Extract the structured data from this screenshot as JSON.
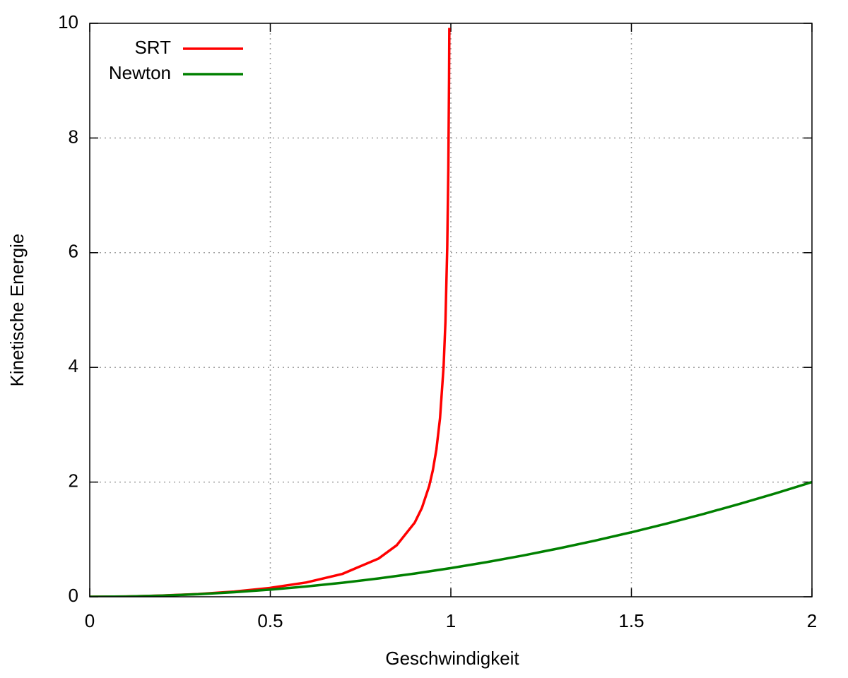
{
  "chart_data": {
    "type": "line",
    "xlabel": "Geschwindigkeit",
    "ylabel": "Kinetische Energie",
    "xlim": [
      0,
      2
    ],
    "ylim": [
      0,
      10
    ],
    "xticks": [
      0,
      0.5,
      1,
      1.5,
      2
    ],
    "yticks": [
      0,
      2,
      4,
      6,
      8,
      10
    ],
    "grid": true,
    "legend": "top-left",
    "series": [
      {
        "name": "SRT",
        "color": "#ff0000",
        "x": [
          0,
          0.1,
          0.2,
          0.3,
          0.4,
          0.5,
          0.6,
          0.7,
          0.8,
          0.85,
          0.9,
          0.92,
          0.94,
          0.95,
          0.96,
          0.97,
          0.98,
          0.985,
          0.99,
          0.993,
          0.995,
          0.9958
        ],
        "values": [
          0,
          0.005,
          0.021,
          0.048,
          0.091,
          0.155,
          0.25,
          0.4,
          0.667,
          0.898,
          1.294,
          1.552,
          1.931,
          2.203,
          2.571,
          3.113,
          4.025,
          4.795,
          6.089,
          7.466,
          9.01,
          9.92
        ]
      },
      {
        "name": "Newton",
        "color": "#008000",
        "x": [
          0,
          0.1,
          0.2,
          0.3,
          0.4,
          0.5,
          0.6,
          0.7,
          0.8,
          0.9,
          1,
          1.1,
          1.2,
          1.3,
          1.4,
          1.5,
          1.6,
          1.7,
          1.8,
          1.9,
          2
        ],
        "values": [
          0,
          0.005,
          0.02,
          0.045,
          0.08,
          0.125,
          0.18,
          0.245,
          0.32,
          0.405,
          0.5,
          0.605,
          0.72,
          0.845,
          0.98,
          1.125,
          1.28,
          1.445,
          1.62,
          1.805,
          2
        ]
      }
    ]
  }
}
